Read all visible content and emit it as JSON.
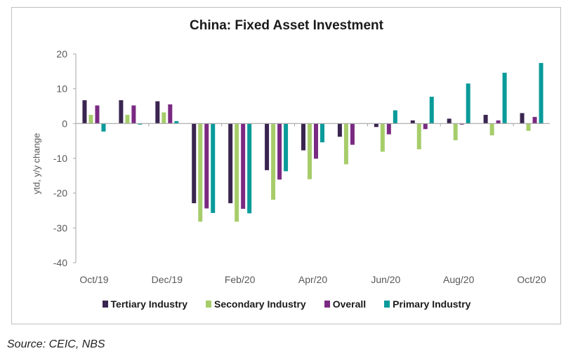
{
  "chart_data": {
    "type": "bar",
    "title": "China: Fixed Asset Investment",
    "ylabel": "ytd, y/y change",
    "xlabel": "",
    "ylim": [
      -40,
      20
    ],
    "y_ticks": [
      20,
      10,
      0,
      -10,
      -20,
      -30,
      -40
    ],
    "x_tick_labels": [
      "Oct/19",
      "Dec/19",
      "Feb/20",
      "Apr/20",
      "Jun/20",
      "Aug/20",
      "Oct/20"
    ],
    "grid": false,
    "legend": "bottom",
    "series": [
      {
        "name": "Tertiary Industry",
        "color": "#3a2550",
        "values": [
          6.7,
          6.7,
          6.4,
          -22.9,
          -22.9,
          -13.4,
          -7.7,
          -3.8,
          -1.0,
          0.9,
          1.4,
          2.5,
          3.0
        ]
      },
      {
        "name": "Secondary Industry",
        "color": "#a6cd6a",
        "values": [
          2.5,
          2.5,
          3.2,
          -28.2,
          -28.2,
          -21.9,
          -16.0,
          -11.7,
          -8.1,
          -7.4,
          -4.8,
          -3.4,
          -2.1
        ]
      },
      {
        "name": "Overall",
        "color": "#7a2a82",
        "values": [
          5.2,
          5.2,
          5.5,
          -24.4,
          -24.5,
          -16.1,
          -10.1,
          -6.1,
          -3.1,
          -1.6,
          -0.3,
          0.9,
          1.9
        ]
      },
      {
        "name": "Primary Industry",
        "color": "#0a9a9a",
        "values": [
          -2.3,
          -0.3,
          0.7,
          -25.7,
          -25.8,
          -13.7,
          -5.4,
          0.0,
          3.8,
          7.7,
          11.5,
          14.6,
          17.4
        ]
      }
    ]
  },
  "source": "Source: CEIC, NBS"
}
